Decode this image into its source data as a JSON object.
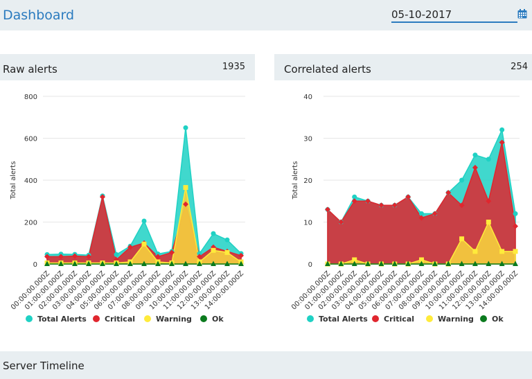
{
  "header": {
    "title": "Dashboard",
    "date_value": "05-10-2017",
    "calendar_icon": "calendar-icon"
  },
  "colors": {
    "accent": "#2b7bbf",
    "total_alerts": "#1fd1c4",
    "critical": "#e0262e",
    "warning": "#ffeb3b",
    "ok": "#0b7a1e"
  },
  "raw_panel": {
    "title": "Raw alerts",
    "count": "1935"
  },
  "correlated_panel": {
    "title": "Correlated alerts",
    "count": "254"
  },
  "footer": {
    "title": "Server Timeline"
  },
  "chart_data": [
    {
      "type": "area",
      "ylabel": "Total alerts",
      "ylim": [
        0,
        800
      ],
      "yticks": [
        0,
        200,
        400,
        600,
        800
      ],
      "grid": true,
      "legend_position": "bottom",
      "x": [
        "00:00:00.000Z",
        "01:00:00.000Z",
        "02:00:00.000Z",
        "03:00:00.000Z",
        "04:00:00.000Z",
        "05:00:00.000Z",
        "06:00:00.000Z",
        "07:00:00.000Z",
        "08:00:00.000Z",
        "09:00:00.000Z",
        "10:00:00.000Z",
        "11:00:00.000Z",
        "12:00:00.000Z",
        "13:00:00.000Z",
        "14:00:00.000Z"
      ],
      "series": [
        {
          "name": "Total Alerts",
          "values": [
            45,
            47,
            46,
            42,
            325,
            45,
            85,
            205,
            48,
            60,
            650,
            50,
            145,
            115,
            50
          ]
        },
        {
          "name": "Critical",
          "values": [
            35,
            35,
            38,
            35,
            320,
            20,
            80,
            100,
            35,
            55,
            285,
            35,
            80,
            60,
            40
          ]
        },
        {
          "name": "Warning",
          "values": [
            5,
            5,
            5,
            5,
            5,
            5,
            10,
            95,
            10,
            5,
            365,
            10,
            65,
            55,
            10
          ]
        },
        {
          "name": "Ok",
          "values": [
            0,
            0,
            0,
            0,
            0,
            0,
            0,
            0,
            0,
            0,
            0,
            0,
            0,
            0,
            0
          ]
        }
      ]
    },
    {
      "type": "area",
      "ylabel": "Total alerts",
      "ylim": [
        0,
        40
      ],
      "yticks": [
        0,
        10,
        20,
        30,
        40
      ],
      "grid": true,
      "legend_position": "bottom",
      "x": [
        "00:00:00.000Z",
        "01:00:00.000Z",
        "02:00:00.000Z",
        "03:00:00.000Z",
        "04:00:00.000Z",
        "05:00:00.000Z",
        "06:00:00.000Z",
        "07:00:00.000Z",
        "08:00:00.000Z",
        "09:00:00.000Z",
        "10:00:00.000Z",
        "11:00:00.000Z",
        "12:00:00.000Z",
        "13:00:00.000Z",
        "14:00:00.000Z"
      ],
      "series": [
        {
          "name": "Total Alerts",
          "values": [
            13,
            10,
            16,
            15,
            14,
            14,
            16,
            12,
            12,
            17,
            20,
            26,
            25,
            32,
            12
          ]
        },
        {
          "name": "Critical",
          "values": [
            13,
            10,
            15,
            15,
            14,
            14,
            16,
            11,
            12,
            17,
            14,
            23,
            15,
            29,
            9
          ]
        },
        {
          "name": "Warning",
          "values": [
            0,
            0,
            1,
            0,
            0,
            0,
            0,
            1,
            0,
            0,
            6,
            3,
            10,
            3,
            3
          ]
        },
        {
          "name": "Ok",
          "values": [
            0,
            0,
            0,
            0,
            0,
            0,
            0,
            0,
            0,
            0,
            0,
            0,
            0,
            0,
            0
          ]
        }
      ]
    }
  ]
}
